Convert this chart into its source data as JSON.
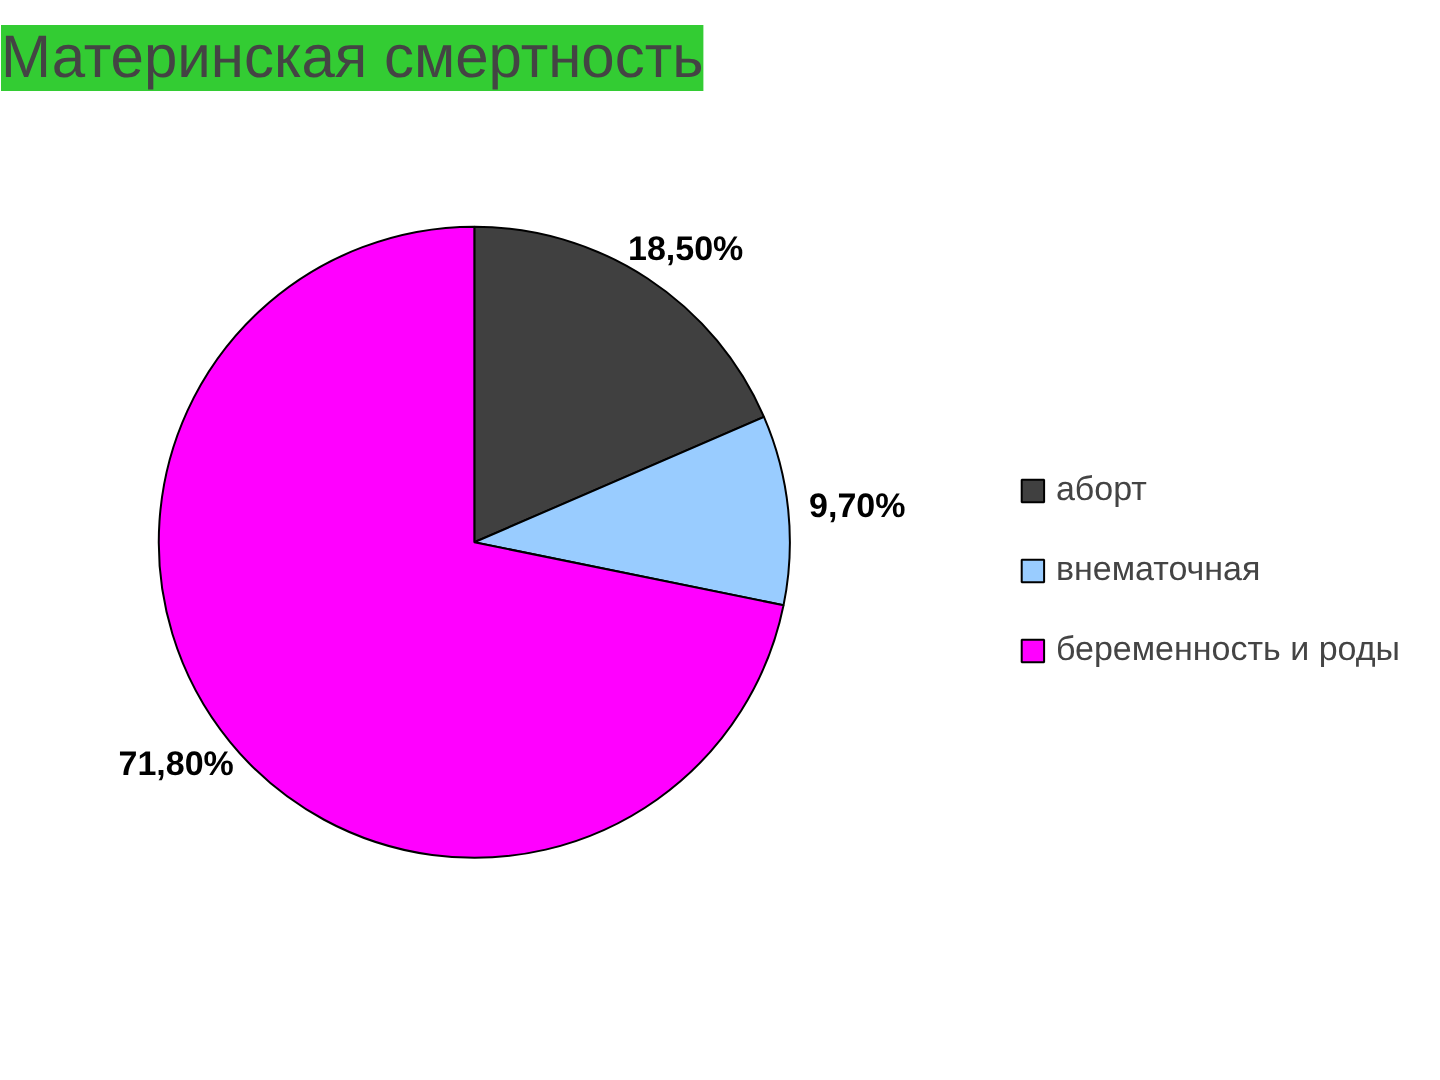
{
  "chart_data": {
    "type": "pie",
    "title": "Материнская смертность",
    "categories": [
      "аборт",
      "внематочная",
      "беременность и роды"
    ],
    "values": [
      18.5,
      9.7,
      71.8
    ],
    "colors": [
      "#404040",
      "#99ccff",
      "#ff00ff"
    ],
    "value_labels": [
      "18,50%",
      "9,70%",
      "71,80%"
    ],
    "legend": "right"
  }
}
